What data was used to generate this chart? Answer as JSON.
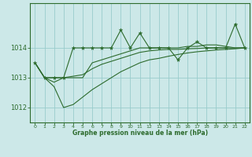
{
  "xlabel": "Graphe pression niveau de la mer (hPa)",
  "background_color": "#cce8e8",
  "grid_color": "#99cccc",
  "line_color": "#2d6b2d",
  "hours": [
    0,
    1,
    2,
    3,
    4,
    5,
    6,
    7,
    8,
    9,
    10,
    11,
    12,
    13,
    14,
    15,
    16,
    17,
    18,
    19,
    20,
    21,
    22
  ],
  "main_line": [
    1013.5,
    1013.0,
    1013.0,
    1013.0,
    1014.0,
    1014.0,
    1014.0,
    1014.0,
    1014.0,
    1014.6,
    1014.0,
    1014.5,
    1014.0,
    1014.0,
    1014.0,
    1013.6,
    1014.0,
    1014.2,
    1014.0,
    1014.0,
    1014.0,
    1014.8,
    1014.0
  ],
  "line_upper": [
    1013.5,
    1013.0,
    1013.0,
    1013.0,
    1013.0,
    1013.0,
    1013.5,
    1013.6,
    1013.7,
    1013.8,
    1013.9,
    1014.0,
    1014.0,
    1014.0,
    1014.0,
    1014.0,
    1014.05,
    1014.05,
    1014.1,
    1014.1,
    1014.05,
    1014.0,
    1014.0
  ],
  "line_mid": [
    1013.5,
    1013.0,
    1012.85,
    1013.0,
    1013.05,
    1013.1,
    1013.3,
    1013.45,
    1013.55,
    1013.65,
    1013.75,
    1013.85,
    1013.9,
    1013.93,
    1013.95,
    1013.95,
    1013.97,
    1013.98,
    1014.0,
    1014.0,
    1014.0,
    1014.0,
    1014.0
  ],
  "line_lower": [
    1013.5,
    1013.0,
    1012.7,
    1012.0,
    1012.1,
    1012.35,
    1012.6,
    1012.8,
    1013.0,
    1013.2,
    1013.35,
    1013.5,
    1013.6,
    1013.65,
    1013.72,
    1013.78,
    1013.83,
    1013.87,
    1013.9,
    1013.93,
    1013.95,
    1013.97,
    1014.0
  ],
  "ylim_min": 1011.5,
  "ylim_max": 1015.5,
  "yticks": [
    1012,
    1013,
    1014
  ],
  "xticks": [
    0,
    1,
    2,
    3,
    4,
    5,
    6,
    7,
    8,
    9,
    10,
    11,
    12,
    13,
    14,
    15,
    16,
    17,
    18,
    19,
    20,
    21,
    22
  ],
  "figwidth": 3.2,
  "figheight": 2.0,
  "dpi": 100
}
